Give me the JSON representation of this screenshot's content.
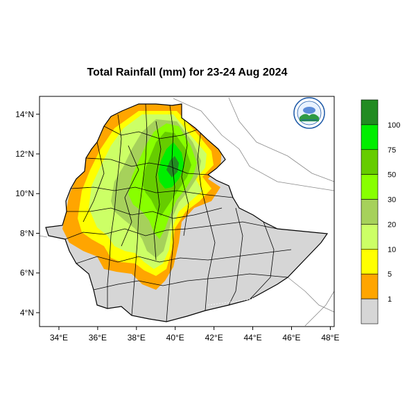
{
  "map": {
    "title": "Total Rainfall (mm) for 23-24 Aug 2024",
    "lon_range": [
      33,
      48.2
    ],
    "lat_range": [
      3.3,
      14.9
    ],
    "lon_ticks": [
      34,
      36,
      38,
      40,
      42,
      44,
      46,
      48
    ],
    "lon_tick_labels": [
      "34°E",
      "36°E",
      "38°E",
      "40°E",
      "42°E",
      "44°E",
      "46°E",
      "48°E"
    ],
    "lat_ticks": [
      4,
      6,
      8,
      10,
      12,
      14
    ],
    "lat_tick_labels": [
      "4°N",
      "6°N",
      "8°N",
      "10°N",
      "12°N",
      "14°N"
    ],
    "colors": {
      "no_rain": "#d6d6d6",
      "c1": "#ffa500",
      "c5": "#ffff00",
      "c10": "#ccff66",
      "c20": "#a6d15b",
      "c30": "#88ff00",
      "c50": "#66cc00",
      "c75": "#00ee00",
      "c100": "#228b22",
      "border": "#000000",
      "neighbor": "#888888"
    }
  },
  "colorbar": {
    "labels": [
      "1",
      "5",
      "10",
      "20",
      "30",
      "50",
      "75",
      "100"
    ],
    "colors": [
      "#d6d6d6",
      "#ffa500",
      "#ffff00",
      "#ccff66",
      "#a6d15b",
      "#88ff00",
      "#66cc00",
      "#00ee00",
      "#228b22"
    ]
  },
  "logo": {
    "name": "ethiopian-meteorology-institute-logo"
  }
}
